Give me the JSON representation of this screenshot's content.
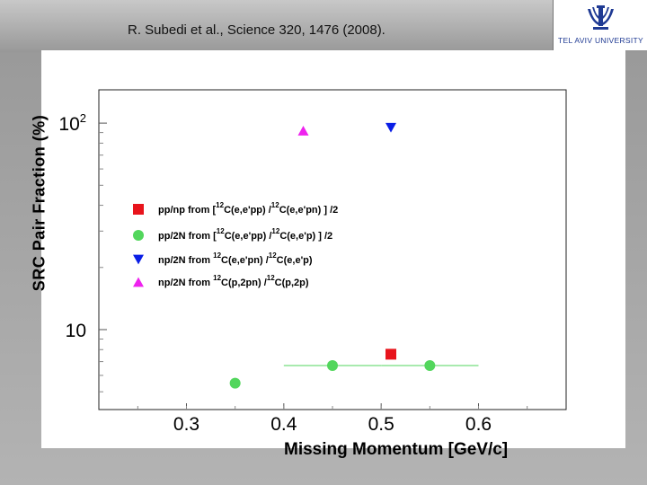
{
  "citation": "R. Subedi et al., Science 320, 1476 (2008).",
  "logo": {
    "text": "TEL AVIV UNIVERSITY",
    "icon": "tel-aviv-university-emblem-icon"
  },
  "colors": {
    "red": "#e8141c",
    "green": "#52d65c",
    "blue": "#0a1ee6",
    "magenta": "#ee22ee"
  },
  "chart_data": {
    "type": "scatter",
    "xlabel": "Missing Momentum [GeV/c]",
    "ylabel": "SRC Pair Fraction (%)",
    "xlim": [
      0.21,
      0.69
    ],
    "ylim": [
      4.1,
      145
    ],
    "yscale": "log",
    "x_ticks": [
      0.3,
      0.4,
      0.5,
      0.6
    ],
    "x_tick_labels": [
      "0.3",
      "0.4",
      "0.5",
      "0.6"
    ],
    "y_ticks": [
      10,
      100
    ],
    "y_tick_labels": [
      {
        "base": "10",
        "exp": ""
      },
      {
        "base": "10",
        "exp": "2"
      }
    ],
    "grid": false,
    "legend_position": "center-left",
    "series": [
      {
        "name": "pp/np from [¹²C(e,e'pp) / ¹²C(e,e'pn) ] /2",
        "legend_parts": [
          "pp/np from [",
          "12",
          "C(e,e'pp) /",
          "12",
          "C(e,e'pn) ] /2"
        ],
        "marker": "square",
        "color": "#e8141c",
        "points": [
          {
            "x": 0.51,
            "y": 7.6
          }
        ]
      },
      {
        "name": "pp/2N from [¹²C(e,e'pp) / ¹²C(e,e'p) ] /2",
        "legend_parts": [
          "pp/2N from [",
          "12",
          "C(e,e'pp) /",
          "12",
          "C(e,e'p) ] /2"
        ],
        "marker": "circle",
        "color": "#52d65c",
        "points": [
          {
            "x": 0.35,
            "y": 5.5
          },
          {
            "x": 0.45,
            "y": 6.7,
            "xerr": [
              0.05,
              0.05
            ]
          },
          {
            "x": 0.55,
            "y": 6.7,
            "xerr": [
              0.05,
              0.05
            ]
          }
        ]
      },
      {
        "name": "np/2N from ¹²C(e,e'pn) / ¹²C(e,e'p)",
        "legend_parts": [
          "np/2N from ",
          "12",
          "C(e,e'pn) /",
          "12",
          "C(e,e'p)"
        ],
        "marker": "triangle-down",
        "color": "#0a1ee6",
        "points": [
          {
            "x": 0.51,
            "y": 95
          }
        ]
      },
      {
        "name": "np/2N from ¹²C(p,2pn) / ¹²C(p,2p)",
        "legend_parts": [
          "np/2N from ",
          "12",
          "C(p,2pn) /",
          "12",
          "C(p,2p)"
        ],
        "marker": "triangle-up",
        "color": "#ee22ee",
        "points": [
          {
            "x": 0.42,
            "y": 92
          }
        ]
      }
    ]
  }
}
